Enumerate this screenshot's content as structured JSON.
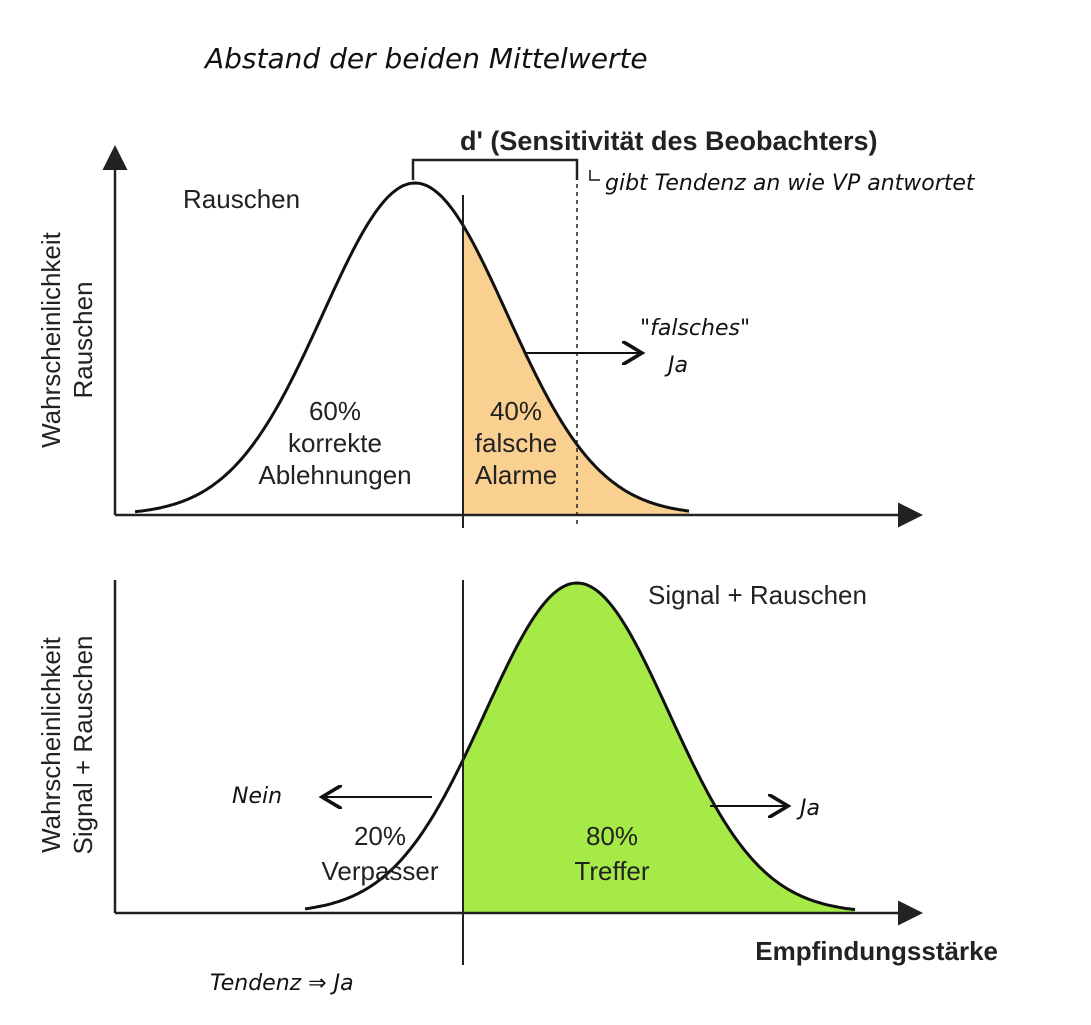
{
  "heading": "Abstand der beiden Mittelwerte",
  "top": {
    "sensitivity": "d' (Sensitivität des Beobachters)",
    "note": "gibt Tendenz an wie VP antwortet",
    "y_label": [
      "Wahrscheinlichkeit",
      "Rauschen"
    ],
    "curve_label": "Rauschen",
    "left_area": [
      "60%",
      "korrekte",
      "Ablehnungen"
    ],
    "right_area": [
      "40%",
      "falsche",
      "Alarme"
    ],
    "arrow_note": [
      "\"falsches\"",
      "Ja"
    ]
  },
  "bottom": {
    "y_label": [
      "Wahrscheinlichkeit",
      "Signal + Rauschen"
    ],
    "curve_label": "Signal + Rauschen",
    "left_area": [
      "20%",
      "Verpasser"
    ],
    "right_area": [
      "80%",
      "Treffer"
    ],
    "left_arrow": "Nein",
    "right_arrow": "Ja",
    "x_label": "Empfindungsstärke",
    "note": "Tendenz ⇒ Ja"
  }
}
